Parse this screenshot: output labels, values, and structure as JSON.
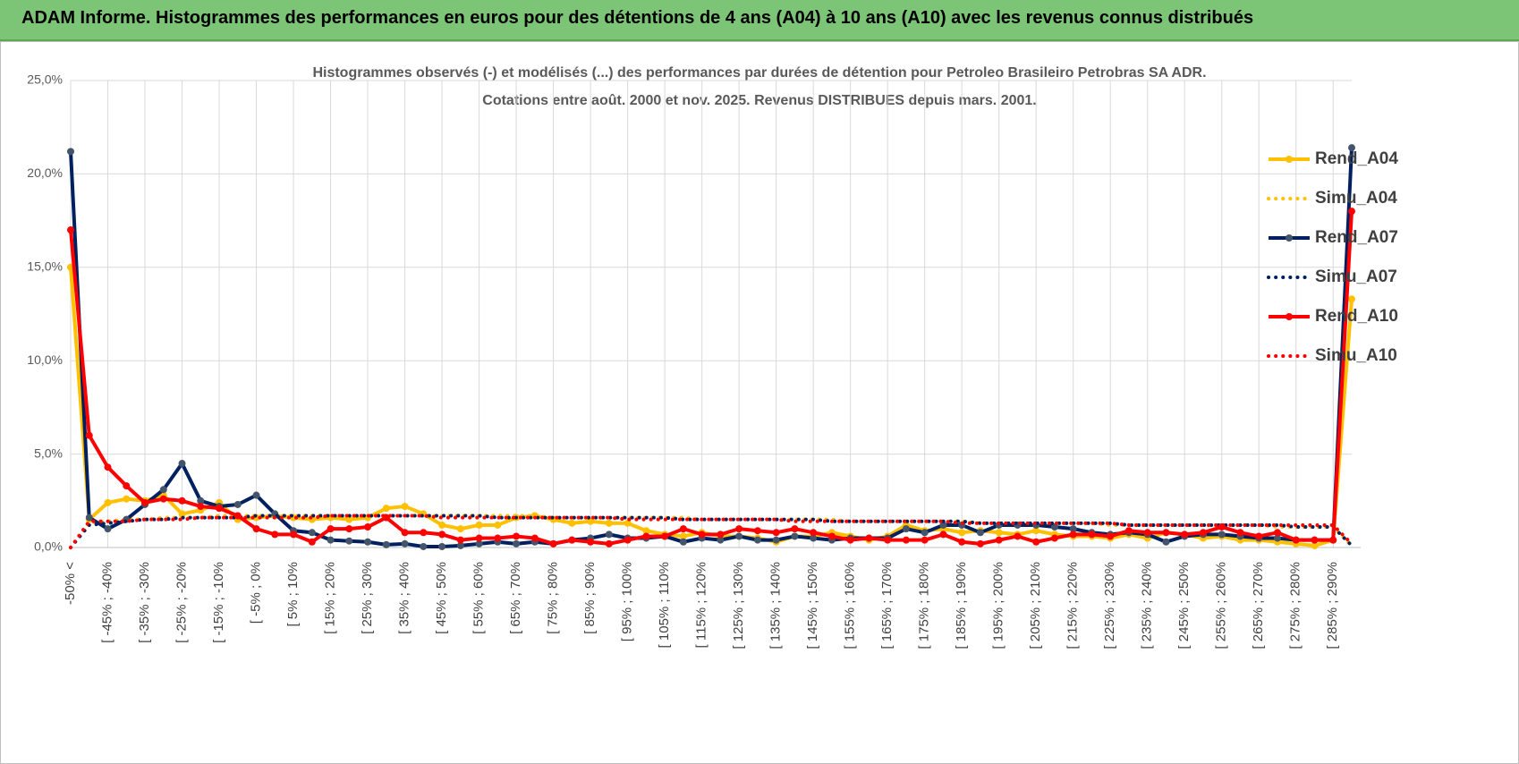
{
  "header": {
    "title": "ADAM Informe. Histogrammes des performances en euros pour des détentions de 4 ans (A04) à 10 ans (A10) avec les revenus connus distribués"
  },
  "chart_data": {
    "type": "line",
    "title": "Histogrammes observés (-) et modélisés (...) des performances par durées de détention pour Petroleo Brasileiro Petrobras SA ADR.",
    "subtitle": "Cotations entre août. 2000 et nov. 2025. Revenus DISTRIBUES depuis mars. 2001.",
    "categories": [
      "-50% <",
      null,
      "[ -45% ; -40%",
      null,
      "[ -35% ; -30%",
      null,
      "[ -25% ; -20%",
      null,
      "[ -15% ; -10%",
      null,
      "[ -5% ; 0%",
      null,
      "[ 5% ; 10%",
      null,
      "[ 15% ; 20%",
      null,
      "[ 25% ; 30%",
      null,
      "[ 35% ; 40%",
      null,
      "[ 45% ; 50%",
      null,
      "[ 55% ; 60%",
      null,
      "[ 65% ; 70%",
      null,
      "[ 75% ; 80%",
      null,
      "[ 85% ; 90%",
      null,
      "[ 95% ; 100%",
      null,
      "[ 105% ; 110%",
      null,
      "[ 115% ; 120%",
      null,
      "[ 125% ; 130%",
      null,
      "[ 135% ; 140%",
      null,
      "[ 145% ; 150%",
      null,
      "[ 155% ; 160%",
      null,
      "[ 165% ; 170%",
      null,
      "[ 175% ; 180%",
      null,
      "[ 185% ; 190%",
      null,
      "[ 195% ; 200%",
      null,
      "[ 205% ; 210%",
      null,
      "[ 215% ; 220%",
      null,
      "[ 225% ; 230%",
      null,
      "[ 235% ; 240%",
      null,
      "[ 245% ; 250%",
      null,
      "[ 255% ; 260%",
      null,
      "[ 265% ; 270%",
      null,
      "[ 275% ; 280%",
      null,
      "[ 285% ; 290%",
      null
    ],
    "ylim": [
      0,
      25
    ],
    "yticks": [
      {
        "value": 0,
        "label": "0,0%"
      },
      {
        "value": 5,
        "label": "5,0%"
      },
      {
        "value": 10,
        "label": "10,0%"
      },
      {
        "value": 15,
        "label": "15,0%"
      },
      {
        "value": 20,
        "label": "20,0%"
      },
      {
        "value": 25,
        "label": "25,0%"
      }
    ],
    "grid": true,
    "legend": "right",
    "series": [
      {
        "name": "Rend_A04",
        "color": "#ffc000",
        "style": "solid",
        "markers": true,
        "values": [
          15.0,
          1.5,
          2.4,
          2.6,
          2.5,
          2.8,
          1.8,
          2.0,
          2.4,
          1.5,
          1.6,
          1.7,
          1.6,
          1.5,
          1.6,
          1.5,
          1.6,
          2.1,
          2.2,
          1.8,
          1.2,
          1.0,
          1.2,
          1.2,
          1.6,
          1.7,
          1.5,
          1.3,
          1.4,
          1.3,
          1.3,
          0.9,
          0.7,
          0.6,
          0.8,
          0.6,
          0.6,
          0.5,
          0.3,
          0.6,
          0.6,
          0.8,
          0.6,
          0.4,
          0.6,
          1.2,
          0.9,
          1.0,
          0.8,
          0.9,
          0.8,
          0.7,
          0.9,
          0.7,
          0.6,
          0.6,
          0.5,
          0.7,
          0.5,
          0.8,
          0.7,
          0.5,
          0.6,
          0.4,
          0.4,
          0.3,
          0.2,
          0.1,
          0.4,
          13.3
        ]
      },
      {
        "name": "Simu_A04",
        "color": "#ffc000",
        "style": "dotted",
        "markers": false,
        "values": [
          0.0,
          1.3,
          1.4,
          1.5,
          1.5,
          1.6,
          1.6,
          1.6,
          1.7,
          1.7,
          1.7,
          1.7,
          1.7,
          1.7,
          1.7,
          1.7,
          1.7,
          1.7,
          1.7,
          1.7,
          1.7,
          1.7,
          1.7,
          1.7,
          1.7,
          1.7,
          1.6,
          1.6,
          1.6,
          1.6,
          1.6,
          1.6,
          1.6,
          1.6,
          1.5,
          1.5,
          1.5,
          1.5,
          1.5,
          1.5,
          1.5,
          1.5,
          1.4,
          1.4,
          1.4,
          1.4,
          1.4,
          1.4,
          1.4,
          1.3,
          1.3,
          1.3,
          1.3,
          1.3,
          1.3,
          1.3,
          1.2,
          1.2,
          1.2,
          1.2,
          1.2,
          1.2,
          1.2,
          1.2,
          1.2,
          1.1,
          1.1,
          1.1,
          1.1,
          0.1
        ]
      },
      {
        "name": "Rend_A07",
        "color": "#002060",
        "marker_color": "#44546a",
        "style": "solid",
        "markers": true,
        "values": [
          21.2,
          1.6,
          1.0,
          1.5,
          2.3,
          3.1,
          4.5,
          2.5,
          2.2,
          2.3,
          2.8,
          1.8,
          0.9,
          0.8,
          0.4,
          0.35,
          0.3,
          0.15,
          0.2,
          0.05,
          0.05,
          0.1,
          0.2,
          0.3,
          0.2,
          0.3,
          0.2,
          0.4,
          0.5,
          0.7,
          0.5,
          0.5,
          0.6,
          0.3,
          0.5,
          0.4,
          0.6,
          0.4,
          0.4,
          0.6,
          0.5,
          0.4,
          0.5,
          0.5,
          0.5,
          1.0,
          0.8,
          1.2,
          1.2,
          0.8,
          1.2,
          1.2,
          1.2,
          1.1,
          1.0,
          0.8,
          0.7,
          0.8,
          0.7,
          0.3,
          0.6,
          0.7,
          0.7,
          0.6,
          0.5,
          0.5,
          0.4,
          0.4,
          0.4,
          21.4
        ]
      },
      {
        "name": "Simu_A07",
        "color": "#002060",
        "style": "dotted",
        "markers": false,
        "values": [
          0.0,
          1.2,
          1.3,
          1.4,
          1.5,
          1.5,
          1.6,
          1.6,
          1.6,
          1.6,
          1.7,
          1.7,
          1.7,
          1.7,
          1.7,
          1.7,
          1.7,
          1.7,
          1.7,
          1.7,
          1.7,
          1.7,
          1.7,
          1.6,
          1.6,
          1.6,
          1.6,
          1.6,
          1.6,
          1.6,
          1.6,
          1.6,
          1.6,
          1.5,
          1.5,
          1.5,
          1.5,
          1.5,
          1.5,
          1.5,
          1.5,
          1.4,
          1.4,
          1.4,
          1.4,
          1.4,
          1.4,
          1.4,
          1.4,
          1.3,
          1.3,
          1.3,
          1.3,
          1.3,
          1.3,
          1.3,
          1.3,
          1.2,
          1.2,
          1.2,
          1.2,
          1.2,
          1.2,
          1.2,
          1.2,
          1.2,
          1.1,
          1.1,
          1.1,
          0.1
        ]
      },
      {
        "name": "Rend_A10",
        "color": "#ff0000",
        "style": "solid",
        "markers": true,
        "values": [
          17.0,
          6.0,
          4.3,
          3.3,
          2.4,
          2.6,
          2.5,
          2.2,
          2.1,
          1.7,
          1.0,
          0.7,
          0.7,
          0.3,
          1.0,
          1.0,
          1.1,
          1.6,
          0.8,
          0.8,
          0.7,
          0.4,
          0.5,
          0.5,
          0.6,
          0.5,
          0.2,
          0.4,
          0.3,
          0.2,
          0.4,
          0.6,
          0.6,
          1.0,
          0.7,
          0.7,
          1.0,
          0.9,
          0.8,
          1.0,
          0.8,
          0.6,
          0.4,
          0.5,
          0.4,
          0.4,
          0.4,
          0.7,
          0.3,
          0.2,
          0.4,
          0.6,
          0.3,
          0.5,
          0.7,
          0.7,
          0.6,
          0.9,
          0.8,
          0.8,
          0.7,
          0.8,
          1.1,
          0.8,
          0.6,
          0.8,
          0.4,
          0.4,
          0.4,
          18.0
        ]
      },
      {
        "name": "Simu_A10",
        "color": "#ff0000",
        "style": "dotted",
        "markers": false,
        "values": [
          0.0,
          1.4,
          1.4,
          1.4,
          1.5,
          1.5,
          1.5,
          1.6,
          1.6,
          1.6,
          1.6,
          1.6,
          1.6,
          1.6,
          1.7,
          1.7,
          1.7,
          1.7,
          1.7,
          1.7,
          1.6,
          1.6,
          1.6,
          1.6,
          1.6,
          1.6,
          1.6,
          1.6,
          1.6,
          1.6,
          1.5,
          1.5,
          1.5,
          1.5,
          1.5,
          1.5,
          1.5,
          1.5,
          1.5,
          1.4,
          1.4,
          1.4,
          1.4,
          1.4,
          1.4,
          1.4,
          1.4,
          1.4,
          1.3,
          1.3,
          1.3,
          1.3,
          1.3,
          1.3,
          1.3,
          1.3,
          1.3,
          1.2,
          1.2,
          1.2,
          1.2,
          1.2,
          1.2,
          1.2,
          1.2,
          1.2,
          1.2,
          1.2,
          1.2,
          0.2
        ]
      }
    ]
  }
}
